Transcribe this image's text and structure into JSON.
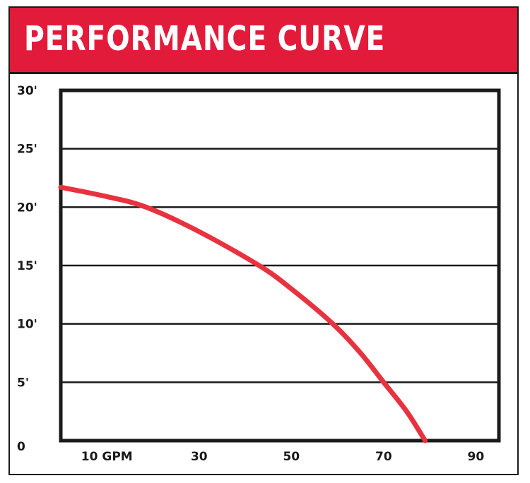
{
  "header": {
    "title": "PERFORMANCE CURVE"
  },
  "colors": {
    "header_bg": "#e31b3b",
    "curve": "#e8323f",
    "frame": "#1a1a1a"
  },
  "chart_data": {
    "type": "line",
    "title": "PERFORMANCE CURVE",
    "xlabel": "",
    "ylabel": "",
    "xlim": [
      0,
      95
    ],
    "ylim": [
      0,
      30
    ],
    "grid": {
      "horizontal": true,
      "vertical": false
    },
    "x_ticks": [
      {
        "value": 10,
        "label": "10 GPM"
      },
      {
        "value": 30,
        "label": "30"
      },
      {
        "value": 50,
        "label": "50"
      },
      {
        "value": 70,
        "label": "70"
      },
      {
        "value": 90,
        "label": "90"
      }
    ],
    "y_ticks": [
      {
        "value": 0,
        "label": "0"
      },
      {
        "value": 5,
        "label": "5'"
      },
      {
        "value": 10,
        "label": "10'"
      },
      {
        "value": 15,
        "label": "15'"
      },
      {
        "value": 20,
        "label": "20'"
      },
      {
        "value": 25,
        "label": "25'"
      },
      {
        "value": 30,
        "label": "30'"
      }
    ],
    "series": [
      {
        "x": [
          0,
          10,
          18.5,
          30,
          43,
          50,
          59,
          65,
          70,
          75,
          79
        ],
        "y": [
          21.7,
          20.9,
          20,
          17.9,
          15,
          13,
          10,
          7.5,
          5,
          2.5,
          0
        ]
      }
    ]
  }
}
